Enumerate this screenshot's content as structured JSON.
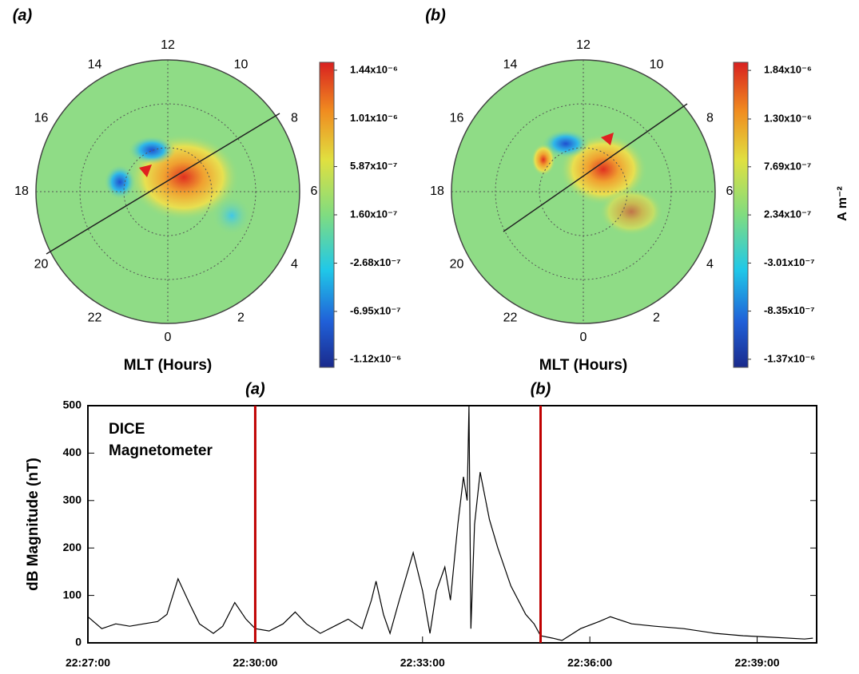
{
  "chart_data": [
    {
      "type": "polar",
      "panel_label": "(a)",
      "x_label": "MLT (Hours)",
      "mlt_ticks": [
        0,
        2,
        4,
        6,
        8,
        10,
        12,
        14,
        16,
        18,
        20,
        22
      ],
      "clim": [
        -1.19e-06,
        1.51e-06
      ],
      "cticks": [
        {
          "value": 1.44e-06,
          "label": "1.44x10⁻⁶"
        },
        {
          "value": 1.01e-06,
          "label": "1.01x10⁻⁶"
        },
        {
          "value": 5.87e-07,
          "label": "5.87x10⁻⁷"
        },
        {
          "value": 1.6e-07,
          "label": "1.60x10⁻⁷"
        },
        {
          "value": -2.68e-07,
          "label": "-2.68x10⁻⁷"
        },
        {
          "value": -6.95e-07,
          "label": "-6.95x10⁻⁷"
        },
        {
          "value": -1.12e-06,
          "label": "-1.12x10⁻⁶"
        }
      ]
    },
    {
      "type": "polar",
      "panel_label": "(b)",
      "x_label": "MLT (Hours)",
      "colorbar_label": "A m⁻²",
      "mlt_ticks": [
        0,
        2,
        4,
        6,
        8,
        10,
        12,
        14,
        16,
        18,
        20,
        22
      ],
      "clim": [
        -1.46e-06,
        1.93e-06
      ],
      "cticks": [
        {
          "value": 1.84e-06,
          "label": "1.84x10⁻⁶"
        },
        {
          "value": 1.3e-06,
          "label": "1.30x10⁻⁶"
        },
        {
          "value": 7.69e-07,
          "label": "7.69x10⁻⁷"
        },
        {
          "value": 2.34e-07,
          "label": "2.34x10⁻⁷"
        },
        {
          "value": -3.01e-07,
          "label": "-3.01x10⁻⁷"
        },
        {
          "value": -8.35e-07,
          "label": "-8.35x10⁻⁷"
        },
        {
          "value": -1.37e-06,
          "label": "-1.37x10⁻⁶"
        }
      ]
    },
    {
      "type": "line",
      "y_label": "dB Magnitude (nT)",
      "annotation": [
        "DICE",
        "Magnetometer"
      ],
      "xlim": [
        "22:27:00",
        "22:40:04"
      ],
      "xticks": [
        "22:27:00",
        "22:30:00",
        "22:33:00",
        "22:36:00",
        "22:39:00"
      ],
      "ylim": [
        0,
        500
      ],
      "yticks": [
        0,
        100,
        200,
        300,
        400,
        500
      ],
      "events": [
        {
          "x": "22:30:00",
          "label": "(a)",
          "color": "#c00000"
        },
        {
          "x": "22:35:07",
          "label": "(b)",
          "color": "#c00000"
        }
      ],
      "x": [
        "22:27:00",
        "22:27:15",
        "22:27:30",
        "22:27:45",
        "22:28:00",
        "22:28:15",
        "22:28:25",
        "22:28:37",
        "22:28:50",
        "22:29:00",
        "22:29:15",
        "22:29:25",
        "22:29:38",
        "22:29:50",
        "22:30:00",
        "22:30:15",
        "22:30:30",
        "22:30:43",
        "22:30:55",
        "22:31:10",
        "22:31:25",
        "22:31:40",
        "22:31:55",
        "22:32:05",
        "22:32:10",
        "22:32:18",
        "22:32:25",
        "22:32:35",
        "22:32:50",
        "22:33:00",
        "22:33:08",
        "22:33:15",
        "22:33:24",
        "22:33:30",
        "22:33:38",
        "22:33:44",
        "22:33:48",
        "22:33:50",
        "22:33:52",
        "22:33:56",
        "22:34:02",
        "22:34:12",
        "22:34:21",
        "22:34:35",
        "22:34:51",
        "22:35:00",
        "22:35:07",
        "22:35:20",
        "22:35:30",
        "22:35:50",
        "22:36:10",
        "22:36:22",
        "22:36:45",
        "22:37:10",
        "22:37:41",
        "22:38:15",
        "22:38:45",
        "22:39:15",
        "22:39:51",
        "22:40:00"
      ],
      "series": [
        {
          "color": "#000000",
          "values": [
            55,
            30,
            40,
            35,
            40,
            45,
            60,
            135,
            80,
            40,
            20,
            35,
            85,
            50,
            30,
            25,
            40,
            65,
            40,
            20,
            35,
            50,
            30,
            90,
            130,
            60,
            20,
            90,
            190,
            110,
            20,
            110,
            160,
            90,
            250,
            350,
            300,
            500,
            30,
            250,
            360,
            260,
            200,
            120,
            60,
            40,
            15,
            10,
            5,
            30,
            45,
            55,
            40,
            35,
            30,
            20,
            15,
            12,
            8,
            10
          ]
        }
      ]
    }
  ]
}
